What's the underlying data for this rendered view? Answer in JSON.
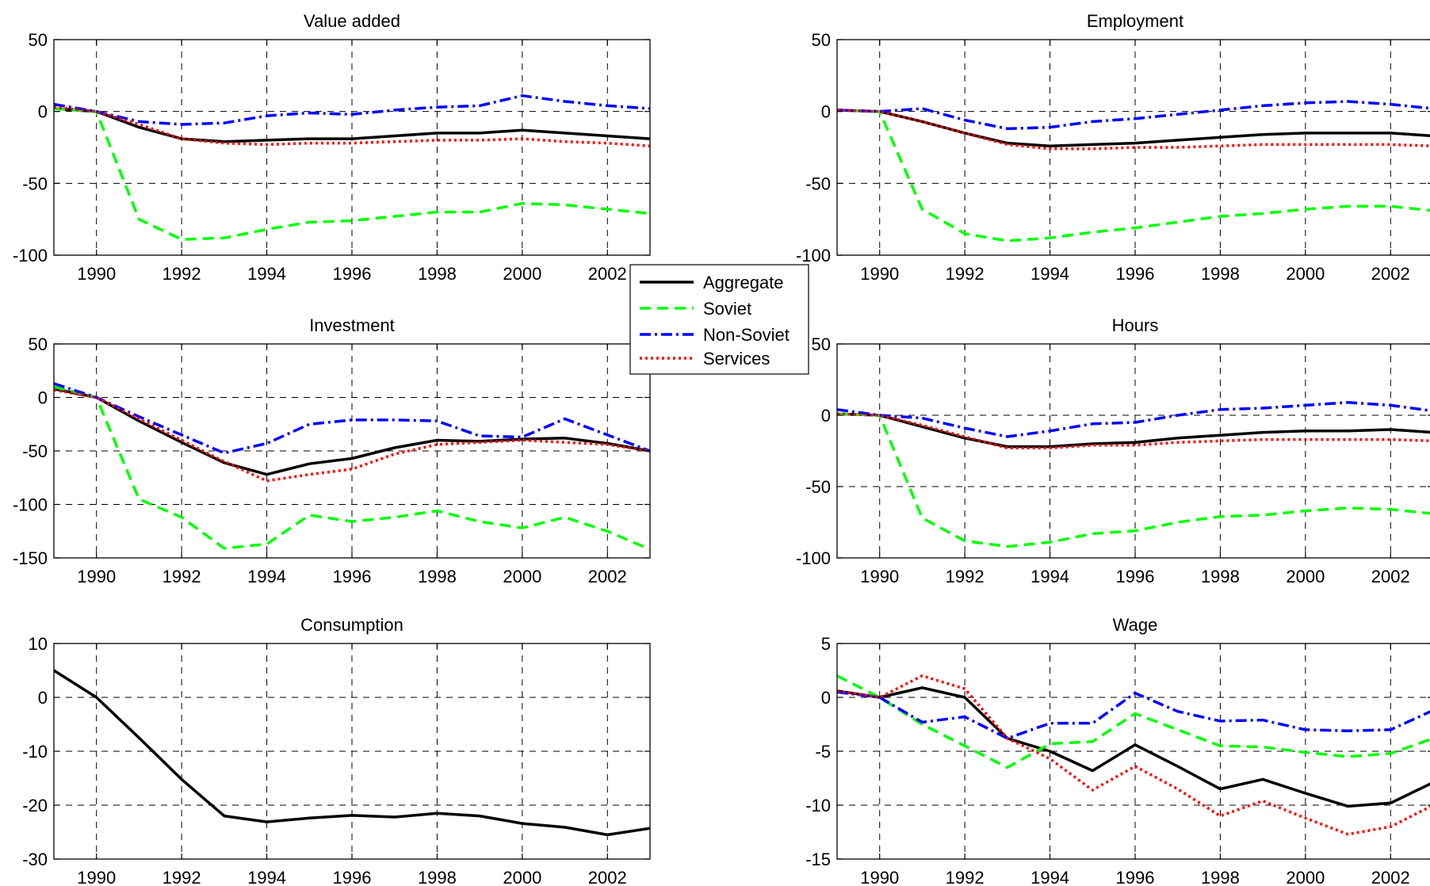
{
  "colors": {
    "Aggregate": "#000000",
    "Soviet": "#00ff00",
    "Non-Soviet": "#0000ff",
    "Services": "#ff0000"
  },
  "legend": {
    "entries": [
      "Aggregate",
      "Soviet",
      "Non-Soviet",
      "Services"
    ]
  },
  "chart_data": [
    {
      "type": "line",
      "title": "Value added",
      "xlim": [
        1989,
        2003
      ],
      "ylim": [
        -100,
        50
      ],
      "xticks": [
        "1990",
        "1992",
        "1994",
        "1996",
        "1998",
        "2000",
        "2002"
      ],
      "yticks": [
        "50",
        "0",
        "-50",
        "-100"
      ],
      "grid": true,
      "x": [
        1989,
        1990,
        1991,
        1992,
        1993,
        1994,
        1995,
        1996,
        1997,
        1998,
        1999,
        2000,
        2001,
        2002,
        2003
      ],
      "series": [
        {
          "name": "Aggregate",
          "values": [
            2,
            0,
            -11,
            -19,
            -21,
            -20,
            -19,
            -19,
            -17,
            -15,
            -15,
            -13,
            -15,
            -17,
            -19
          ]
        },
        {
          "name": "Soviet",
          "values": [
            2,
            0,
            -75,
            -89,
            -88,
            -82,
            -77,
            -76,
            -73,
            -70,
            -70,
            -64,
            -65,
            -68,
            -71
          ]
        },
        {
          "name": "Non-Soviet",
          "values": [
            5,
            0,
            -7,
            -9,
            -8,
            -3,
            -1,
            -2,
            1,
            3,
            4,
            11,
            7,
            4,
            2
          ]
        },
        {
          "name": "Services",
          "values": [
            3,
            0,
            -9,
            -19,
            -22,
            -23,
            -22,
            -22,
            -21,
            -20,
            -20,
            -19,
            -21,
            -22,
            -24
          ]
        }
      ]
    },
    {
      "type": "line",
      "title": "Employment",
      "xlim": [
        1989,
        2003
      ],
      "ylim": [
        -100,
        50
      ],
      "xticks": [
        "1990",
        "1992",
        "1994",
        "1996",
        "1998",
        "2000",
        "2002"
      ],
      "yticks": [
        "50",
        "0",
        "-50",
        "-100"
      ],
      "grid": true,
      "x": [
        1989,
        1990,
        1991,
        1992,
        1993,
        1994,
        1995,
        1996,
        1997,
        1998,
        1999,
        2000,
        2001,
        2002,
        2003
      ],
      "series": [
        {
          "name": "Aggregate",
          "values": [
            1,
            0,
            -7,
            -15,
            -22,
            -24,
            -23,
            -22,
            -20,
            -18,
            -16,
            -15,
            -15,
            -15,
            -17
          ]
        },
        {
          "name": "Soviet",
          "values": [
            1,
            0,
            -68,
            -85,
            -90,
            -88,
            -84,
            -81,
            -77,
            -73,
            -71,
            -68,
            -66,
            -66,
            -69
          ]
        },
        {
          "name": "Non-Soviet",
          "values": [
            1,
            0,
            2,
            -6,
            -12,
            -11,
            -7,
            -5,
            -2,
            1,
            4,
            6,
            7,
            5,
            2
          ]
        },
        {
          "name": "Services",
          "values": [
            1,
            0,
            -7,
            -15,
            -23,
            -26,
            -26,
            -25,
            -25,
            -24,
            -23,
            -23,
            -23,
            -23,
            -24
          ]
        }
      ]
    },
    {
      "type": "line",
      "title": "Investment",
      "xlim": [
        1989,
        2003
      ],
      "ylim": [
        -150,
        50
      ],
      "xticks": [
        "1990",
        "1992",
        "1994",
        "1996",
        "1998",
        "2000",
        "2002"
      ],
      "yticks": [
        "50",
        "0",
        "-50",
        "-100",
        "-150"
      ],
      "grid": true,
      "x": [
        1989,
        1990,
        1991,
        1992,
        1993,
        1994,
        1995,
        1996,
        1997,
        1998,
        1999,
        2000,
        2001,
        2002,
        2003
      ],
      "series": [
        {
          "name": "Aggregate",
          "values": [
            8,
            0,
            -22,
            -42,
            -61,
            -72,
            -62,
            -57,
            -47,
            -40,
            -41,
            -39,
            -38,
            -43,
            -50
          ]
        },
        {
          "name": "Soviet",
          "values": [
            10,
            0,
            -95,
            -112,
            -141,
            -137,
            -110,
            -116,
            -112,
            -106,
            -116,
            -122,
            -112,
            -125,
            -142
          ]
        },
        {
          "name": "Non-Soviet",
          "values": [
            13,
            0,
            -18,
            -35,
            -52,
            -43,
            -25,
            -21,
            -21,
            -22,
            -36,
            -37,
            -20,
            -35,
            -50
          ]
        },
        {
          "name": "Services",
          "values": [
            7,
            0,
            -20,
            -40,
            -60,
            -78,
            -72,
            -67,
            -53,
            -44,
            -42,
            -40,
            -42,
            -44,
            -50
          ]
        }
      ]
    },
    {
      "type": "line",
      "title": "Hours",
      "xlim": [
        1989,
        2003
      ],
      "ylim": [
        -100,
        50
      ],
      "xticks": [
        "1990",
        "1992",
        "1994",
        "1996",
        "1998",
        "2000",
        "2002"
      ],
      "yticks": [
        "50",
        "0",
        "-50",
        "-100"
      ],
      "grid": true,
      "x": [
        1989,
        1990,
        1991,
        1992,
        1993,
        1994,
        1995,
        1996,
        1997,
        1998,
        1999,
        2000,
        2001,
        2002,
        2003
      ],
      "series": [
        {
          "name": "Aggregate",
          "values": [
            1,
            0,
            -8,
            -16,
            -22,
            -22,
            -20,
            -19,
            -16,
            -14,
            -12,
            -11,
            -11,
            -10,
            -12
          ]
        },
        {
          "name": "Soviet",
          "values": [
            1,
            0,
            -72,
            -88,
            -92,
            -89,
            -83,
            -81,
            -75,
            -71,
            -70,
            -67,
            -65,
            -66,
            -69
          ]
        },
        {
          "name": "Non-Soviet",
          "values": [
            4,
            0,
            -2,
            -9,
            -15,
            -11,
            -6,
            -5,
            0,
            4,
            5,
            7,
            9,
            7,
            3
          ]
        },
        {
          "name": "Services",
          "values": [
            1,
            0,
            -7,
            -15,
            -23,
            -23,
            -21,
            -21,
            -19,
            -18,
            -17,
            -17,
            -17,
            -17,
            -18
          ]
        }
      ]
    },
    {
      "type": "line",
      "title": "Consumption",
      "xlim": [
        1989,
        2003
      ],
      "ylim": [
        -30,
        10
      ],
      "xticks": [
        "1990",
        "1992",
        "1994",
        "1996",
        "1998",
        "2000",
        "2002"
      ],
      "yticks": [
        "10",
        "0",
        "-10",
        "-20",
        "-30"
      ],
      "grid": true,
      "x": [
        1989,
        1990,
        1991,
        1992,
        1993,
        1994,
        1995,
        1996,
        1997,
        1998,
        1999,
        2000,
        2001,
        2002,
        2003
      ],
      "series": [
        {
          "name": "Aggregate",
          "values": [
            5,
            0,
            -7.5,
            -15.2,
            -22,
            -23.1,
            -22.4,
            -21.9,
            -22.2,
            -21.5,
            -22,
            -23.4,
            -24.1,
            -25.5,
            -24.3
          ]
        }
      ]
    },
    {
      "type": "line",
      "title": "Wage",
      "xlim": [
        1989,
        2003
      ],
      "ylim": [
        -15,
        5
      ],
      "xticks": [
        "1990",
        "1992",
        "1994",
        "1996",
        "1998",
        "2000",
        "2002"
      ],
      "yticks": [
        "5",
        "0",
        "-5",
        "-10",
        "-15"
      ],
      "grid": true,
      "x": [
        1989,
        1990,
        1991,
        1992,
        1993,
        1994,
        1995,
        1996,
        1997,
        1998,
        1999,
        2000,
        2001,
        2002,
        2003
      ],
      "series": [
        {
          "name": "Aggregate",
          "values": [
            0.6,
            0,
            0.9,
            0,
            -3.8,
            -5,
            -6.8,
            -4.4,
            -6.4,
            -8.5,
            -7.6,
            -8.9,
            -10.1,
            -9.8,
            -7.9
          ]
        },
        {
          "name": "Soviet",
          "values": [
            2,
            0,
            -2.5,
            -4.5,
            -6.5,
            -4.3,
            -4.1,
            -1.5,
            -3,
            -4.5,
            -4.6,
            -5.1,
            -5.5,
            -5.2,
            -3.8
          ]
        },
        {
          "name": "Non-Soviet",
          "values": [
            0.5,
            0,
            -2.3,
            -1.8,
            -3.8,
            -2.4,
            -2.4,
            0.4,
            -1.3,
            -2.2,
            -2.1,
            -3,
            -3.1,
            -3,
            -1.2
          ]
        },
        {
          "name": "Services",
          "values": [
            0.6,
            0,
            2,
            0.8,
            -3.8,
            -5.7,
            -8.6,
            -6.4,
            -8.5,
            -11,
            -9.6,
            -11.2,
            -12.7,
            -12,
            -10
          ]
        }
      ]
    }
  ]
}
